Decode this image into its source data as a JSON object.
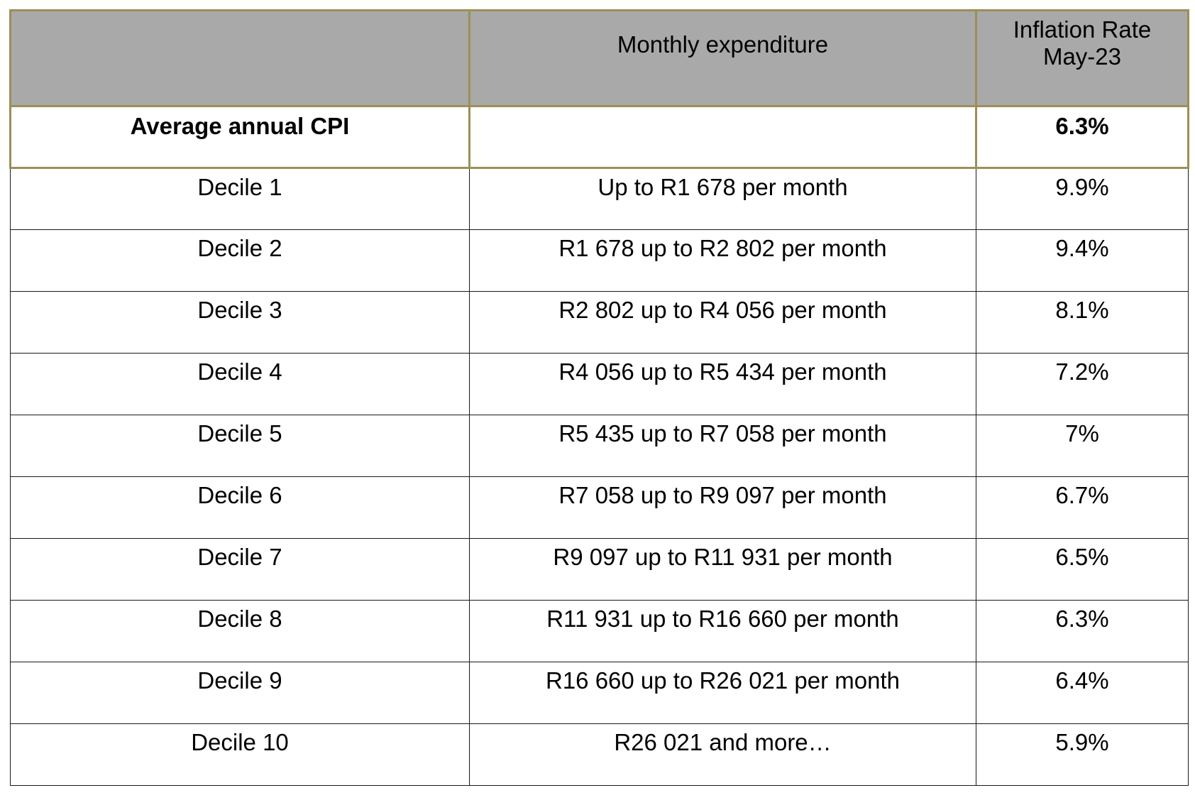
{
  "table": {
    "headers": {
      "col1": "",
      "col2": "Monthly expenditure",
      "col3_line1": "Inflation Rate",
      "col3_line2": "May-23"
    },
    "average_row": {
      "label": "Average annual CPI",
      "expenditure": "",
      "rate": "6.3%"
    },
    "rows": [
      {
        "label": "Decile 1",
        "expenditure": "Up to R1 678 per month",
        "rate": "9.9%"
      },
      {
        "label": "Decile 2",
        "expenditure": "R1 678 up to R2 802 per month",
        "rate": "9.4%"
      },
      {
        "label": "Decile 3",
        "expenditure": "R2 802 up to R4 056 per month",
        "rate": "8.1%"
      },
      {
        "label": "Decile 4",
        "expenditure": "R4 056 up to R5 434 per month",
        "rate": "7.2%"
      },
      {
        "label": "Decile 5",
        "expenditure": "R5 435 up to R7 058 per month",
        "rate": "7%"
      },
      {
        "label": "Decile 6",
        "expenditure": "R7 058 up to R9 097 per month",
        "rate": "6.7%"
      },
      {
        "label": "Decile 7",
        "expenditure": "R9 097 up to R11 931 per month",
        "rate": "6.5%"
      },
      {
        "label": "Decile 8",
        "expenditure": "R11 931 up to R16 660 per month",
        "rate": "6.3%"
      },
      {
        "label": "Decile 9",
        "expenditure": "R16 660 up to R26 021 per month",
        "rate": "6.4%"
      },
      {
        "label": "Decile 10",
        "expenditure": "R26 021 and more…",
        "rate": "5.9%"
      }
    ]
  }
}
